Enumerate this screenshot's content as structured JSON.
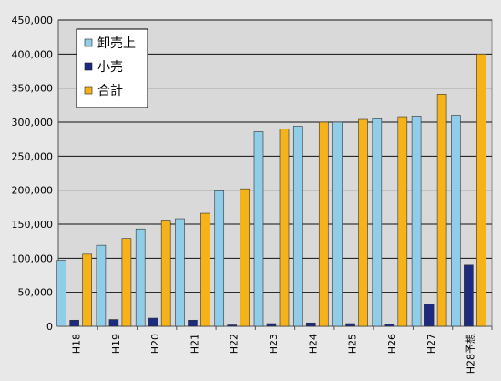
{
  "chart_data": {
    "type": "bar",
    "title": "",
    "xlabel": "",
    "ylabel": "",
    "categories": [
      "H18",
      "H19",
      "H20",
      "H21",
      "H22",
      "H23",
      "H24",
      "H25",
      "H26",
      "H27",
      "H28予想"
    ],
    "series": [
      {
        "name": "卸売上",
        "color": "#8fcde8",
        "values": [
          97000,
          119000,
          143000,
          158000,
          199000,
          286000,
          294000,
          300000,
          305000,
          309000,
          310000
        ]
      },
      {
        "name": "小売",
        "color": "#1c2a80",
        "values": [
          9000,
          10000,
          12000,
          9000,
          2000,
          4000,
          5000,
          4000,
          3000,
          33000,
          90000
        ]
      },
      {
        "name": "合計",
        "color": "#f5b319",
        "values": [
          106000,
          129000,
          156000,
          166000,
          202000,
          290000,
          300000,
          304000,
          308000,
          341000,
          400000
        ]
      }
    ],
    "ylim": [
      0,
      450000
    ],
    "yticks": [
      0,
      50000,
      100000,
      150000,
      200000,
      250000,
      300000,
      350000,
      400000,
      450000
    ],
    "ytick_labels": [
      "0",
      "50,000",
      "100,000",
      "150,000",
      "200,000",
      "250,000",
      "300,000",
      "350,000",
      "400,000",
      "450,000"
    ],
    "grid": true,
    "legend": {
      "position": "top-left",
      "labels": [
        "卸売上",
        "小売",
        "合計"
      ]
    },
    "plot_background": "#d9d9d9"
  }
}
